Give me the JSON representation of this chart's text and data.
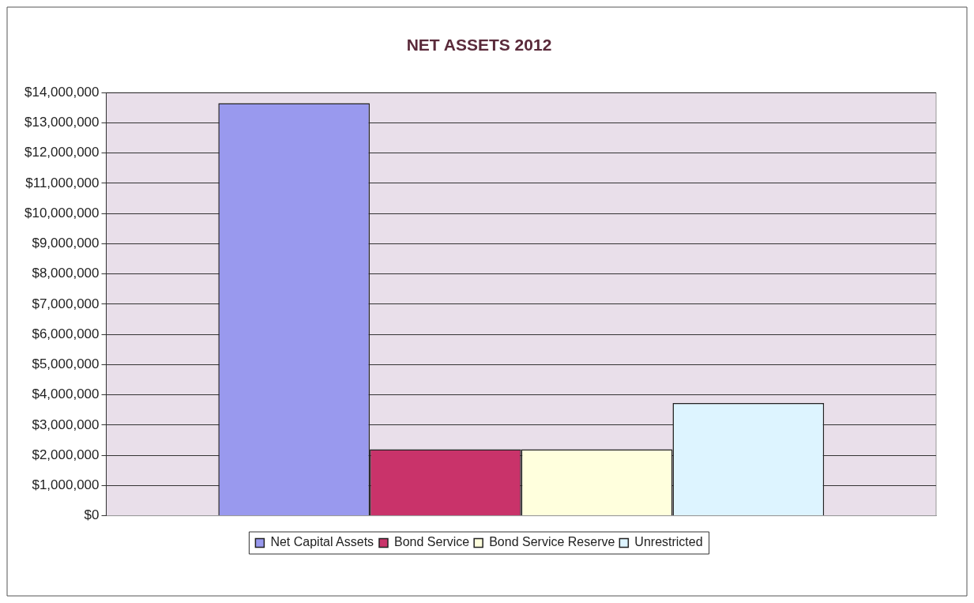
{
  "chart_data": {
    "type": "bar",
    "title": "NET ASSETS 2012",
    "categories": [
      null
    ],
    "series": [
      {
        "name": "Net Capital Assets",
        "color": "#9999ee",
        "values": [
          13650000
        ]
      },
      {
        "name": "Bond Service",
        "color": "#c9336a",
        "values": [
          2200000
        ]
      },
      {
        "name": "Bond Service Reserve",
        "color": "#ffffdd",
        "values": [
          2200000
        ]
      },
      {
        "name": "Unrestricted",
        "color": "#ddf4ff",
        "values": [
          3730000
        ]
      }
    ],
    "ylim": [
      0,
      14000000
    ],
    "yticks": [
      {
        "value": 0,
        "label": "$0"
      },
      {
        "value": 1000000,
        "label": "$1,000,000"
      },
      {
        "value": 2000000,
        "label": "$2,000,000"
      },
      {
        "value": 3000000,
        "label": "$3,000,000"
      },
      {
        "value": 4000000,
        "label": "$4,000,000"
      },
      {
        "value": 5000000,
        "label": "$5,000,000"
      },
      {
        "value": 6000000,
        "label": "$6,000,000"
      },
      {
        "value": 7000000,
        "label": "$7,000,000"
      },
      {
        "value": 8000000,
        "label": "$8,000,000"
      },
      {
        "value": 9000000,
        "label": "$9,000,000"
      },
      {
        "value": 10000000,
        "label": "$10,000,000"
      },
      {
        "value": 11000000,
        "label": "$11,000,000"
      },
      {
        "value": 12000000,
        "label": "$12,000,000"
      },
      {
        "value": 13000000,
        "label": "$13,000,000"
      },
      {
        "value": 14000000,
        "label": "$14,000,000"
      }
    ],
    "grid": "y",
    "legend": "bottom"
  }
}
